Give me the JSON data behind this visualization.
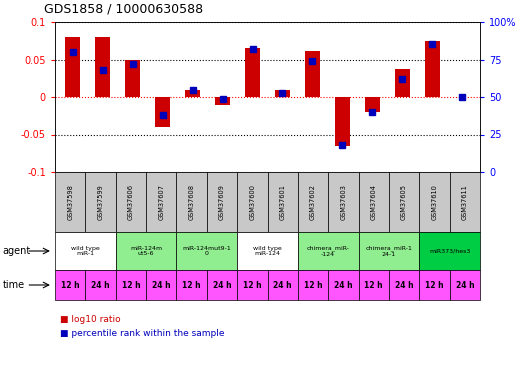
{
  "title": "GDS1858 / 10000630588",
  "samples": [
    "GSM37598",
    "GSM37599",
    "GSM37606",
    "GSM37607",
    "GSM37608",
    "GSM37609",
    "GSM37600",
    "GSM37601",
    "GSM37602",
    "GSM37603",
    "GSM37604",
    "GSM37605",
    "GSM37610",
    "GSM37611"
  ],
  "log10_ratio": [
    0.08,
    0.08,
    0.05,
    -0.04,
    0.01,
    -0.01,
    0.065,
    0.01,
    0.062,
    -0.065,
    -0.02,
    0.038,
    0.075,
    0.0
  ],
  "percentile": [
    80,
    68,
    72,
    38,
    55,
    49,
    82,
    53,
    74,
    18,
    40,
    62,
    85,
    50
  ],
  "agents": [
    {
      "label": "wild type\nmiR-1",
      "cols": [
        0,
        1
      ],
      "color": "#ffffff"
    },
    {
      "label": "miR-124m\nut5-6",
      "cols": [
        2,
        3
      ],
      "color": "#90ee90"
    },
    {
      "label": "miR-124mut9-1\n0",
      "cols": [
        4,
        5
      ],
      "color": "#90ee90"
    },
    {
      "label": "wild type\nmiR-124",
      "cols": [
        6,
        7
      ],
      "color": "#ffffff"
    },
    {
      "label": "chimera_miR-\n-124",
      "cols": [
        8,
        9
      ],
      "color": "#90ee90"
    },
    {
      "label": "chimera_miR-1\n24-1",
      "cols": [
        10,
        11
      ],
      "color": "#90ee90"
    },
    {
      "label": "miR373/hes3",
      "cols": [
        12,
        13
      ],
      "color": "#00cc44"
    }
  ],
  "time_labels": [
    "12 h",
    "24 h",
    "12 h",
    "24 h",
    "12 h",
    "24 h",
    "12 h",
    "24 h",
    "12 h",
    "24 h",
    "12 h",
    "24 h",
    "12 h",
    "24 h"
  ],
  "time_color": "#ff55ff",
  "bar_color": "#cc0000",
  "dot_color": "#0000bb",
  "ylim": [
    -0.1,
    0.1
  ],
  "y2lim": [
    0,
    100
  ],
  "yticks": [
    -0.1,
    -0.05,
    0.0,
    0.05,
    0.1
  ],
  "ytick_labels": [
    "-0.1",
    "-0.05",
    "0",
    "0.05",
    "0.1"
  ],
  "y2ticks": [
    0,
    25,
    50,
    75,
    100
  ],
  "y2tick_labels": [
    "0",
    "25",
    "50",
    "75",
    "100%"
  ],
  "gray_bg": "#d8d8d8",
  "agent_label_color": "#000000",
  "sample_cell_color": "#c8c8c8"
}
